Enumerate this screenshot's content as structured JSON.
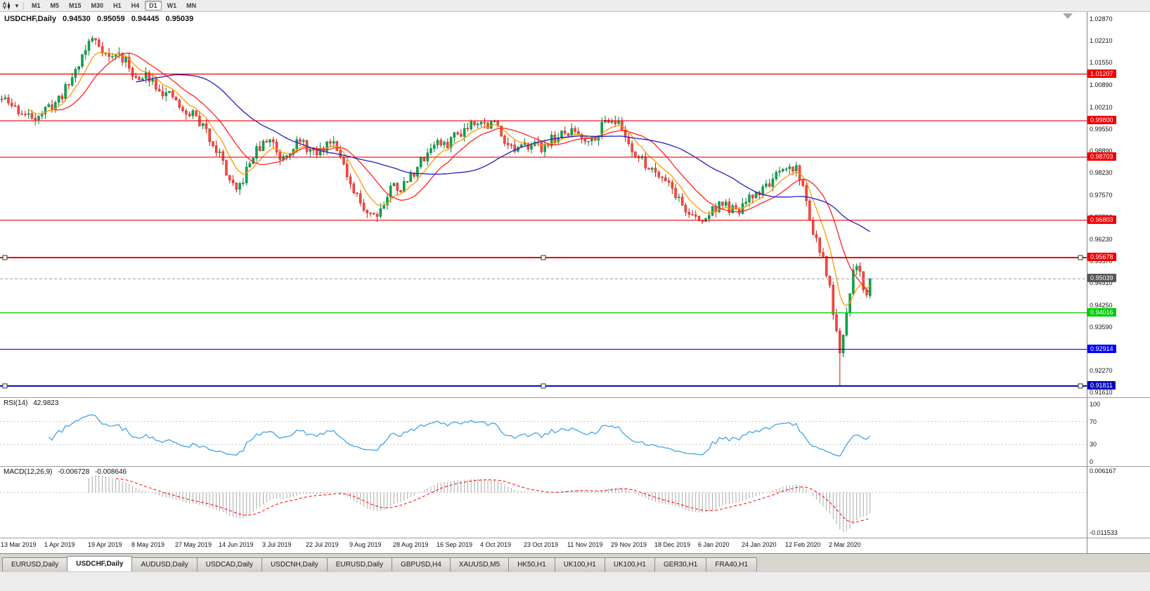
{
  "toolbar": {
    "timeframes": [
      "M1",
      "M5",
      "M15",
      "M30",
      "H1",
      "H4",
      "D1",
      "W1",
      "MN"
    ],
    "active_timeframe": "D1"
  },
  "chart": {
    "symbol_timeframe": "USDCHF,Daily",
    "open": "0.94530",
    "high": "0.95059",
    "low": "0.94445",
    "close": "0.95039"
  },
  "current_price": {
    "value": 0.95039,
    "label": "0.95039"
  },
  "price_axis": {
    "labels": [
      "1.02870",
      "1.02210",
      "1.01550",
      "1.00890",
      "1.00210",
      "0.99550",
      "0.98890",
      "0.98230",
      "0.97570",
      "0.96910",
      "0.96230",
      "0.95570",
      "0.94910",
      "0.94250",
      "0.93590",
      "0.92930",
      "0.92270",
      "0.91610"
    ]
  },
  "x_axis": {
    "labels": [
      "13 Mar 2019",
      "1 Apr 2019",
      "19 Apr 2019",
      "8 May 2019",
      "27 May 2019",
      "14 Jun 2019",
      "3 Jul 2019",
      "22 Jul 2019",
      "9 Aug 2019",
      "28 Aug 2019",
      "16 Sep 2019",
      "4 Oct 2019",
      "23 Oct 2019",
      "11 Nov 2019",
      "29 Nov 2019",
      "18 Dec 2019",
      "6 Jan 2020",
      "24 Jan 2020",
      "12 Feb 2020",
      "2 Mar 2020"
    ]
  },
  "levels": [
    {
      "price": "1.01207",
      "color": "#ee0000",
      "selected": false
    },
    {
      "price": "0.99800",
      "color": "#ee0000",
      "selected": false
    },
    {
      "price": "0.98703",
      "color": "#ee0000",
      "selected": false
    },
    {
      "price": "0.96803",
      "color": "#ee0000",
      "selected": false
    },
    {
      "price": "0.95678",
      "color": "#ee0000",
      "selected": true
    },
    {
      "price": "0.94016",
      "color": "#00cc00",
      "selected": false
    },
    {
      "price": "0.92914",
      "color": "#0000ff",
      "selected": false
    },
    {
      "price": "0.91811",
      "color": "#0000bb",
      "selected": true
    }
  ],
  "rsi": {
    "label": "RSI(14)",
    "value": "42.9823",
    "axis_labels": [
      "100",
      "70",
      "30",
      "0"
    ],
    "level_lines": [
      70,
      30
    ]
  },
  "macd": {
    "label": "MACD(12,26,9)",
    "value": "-0.006728",
    "signal": "-0.008646",
    "axis_labels": [
      "0.006167",
      "-0.011533"
    ]
  },
  "tabs": {
    "items": [
      "EURUSD,Daily",
      "USDCHF,Daily",
      "AUDUSD,Daily",
      "USDCAD,Daily",
      "USDCNH,Daily",
      "EURUSD,Daily",
      "GBPUSD,H4",
      "XAUUSD,M5",
      "HK50,H1",
      "UK100,H1",
      "UK100,H1",
      "GER30,H1",
      "FRA40,H1"
    ],
    "active_index": 1
  },
  "colors": {
    "bull": "#0aa64c",
    "bull_edge": "#067a36",
    "bear": "#fa4b42",
    "bear_edge": "#c3170d",
    "rsi_line": "#41a4e6",
    "macd_hist": "#a8a8a8",
    "macd_signal": "#ff0000",
    "current_badge": "#555555",
    "grid_dotted": "#c4c4c4"
  },
  "chart_data": {
    "type": "candlestick",
    "symbol": "USDCHF",
    "timeframe": "Daily",
    "n_candles": 260,
    "seed": 11,
    "volatility": 0.0032,
    "price_min": 0.9147,
    "price_max": 1.031,
    "macd_min": -0.0122,
    "macd_max": 0.0068,
    "spike": {
      "fraction": 0.965,
      "low": 0.91811
    },
    "last_candle": {
      "o": 0.9453,
      "h": 0.95059,
      "l": 0.94445,
      "c": 0.95039
    },
    "moving_averages": [
      {
        "period": 8,
        "type": "ema",
        "color": "#ff9900"
      },
      {
        "period": 16,
        "type": "sma",
        "color": "#ff2222"
      },
      {
        "period": 40,
        "type": "sma",
        "color": "#1f1fbe"
      }
    ],
    "price_path": [
      [
        0.0,
        1.0045
      ],
      [
        0.015,
        1.002
      ],
      [
        0.03,
        0.999
      ],
      [
        0.042,
        1.0
      ],
      [
        0.05,
        1.001
      ],
      [
        0.062,
        1.0035
      ],
      [
        0.075,
        1.008
      ],
      [
        0.088,
        1.015
      ],
      [
        0.1,
        1.0215
      ],
      [
        0.106,
        1.023
      ],
      [
        0.115,
        1.02
      ],
      [
        0.125,
        1.0165
      ],
      [
        0.133,
        1.0185
      ],
      [
        0.142,
        1.016
      ],
      [
        0.15,
        1.013
      ],
      [
        0.158,
        1.0095
      ],
      [
        0.168,
        1.012
      ],
      [
        0.178,
        1.009
      ],
      [
        0.188,
        1.006
      ],
      [
        0.2,
        1.0045
      ],
      [
        0.21,
        0.9995
      ],
      [
        0.22,
        1.0005
      ],
      [
        0.232,
        0.996
      ],
      [
        0.243,
        0.9915
      ],
      [
        0.252,
        0.9875
      ],
      [
        0.262,
        0.98
      ],
      [
        0.27,
        0.976
      ],
      [
        0.28,
        0.9815
      ],
      [
        0.29,
        0.988
      ],
      [
        0.3,
        0.9905
      ],
      [
        0.31,
        0.993
      ],
      [
        0.32,
        0.987
      ],
      [
        0.33,
        0.989
      ],
      [
        0.34,
        0.9915
      ],
      [
        0.35,
        0.9905
      ],
      [
        0.36,
        0.9875
      ],
      [
        0.37,
        0.9895
      ],
      [
        0.38,
        0.993
      ],
      [
        0.39,
        0.9885
      ],
      [
        0.4,
        0.978
      ],
      [
        0.41,
        0.9745
      ],
      [
        0.42,
        0.971
      ],
      [
        0.43,
        0.9698
      ],
      [
        0.44,
        0.973
      ],
      [
        0.45,
        0.979
      ],
      [
        0.46,
        0.9775
      ],
      [
        0.47,
        0.981
      ],
      [
        0.48,
        0.9845
      ],
      [
        0.49,
        0.9885
      ],
      [
        0.5,
        0.992
      ],
      [
        0.51,
        0.99
      ],
      [
        0.52,
        0.9935
      ],
      [
        0.53,
        0.995
      ],
      [
        0.54,
        0.9975
      ],
      [
        0.548,
        0.9985
      ],
      [
        0.558,
        0.9965
      ],
      [
        0.568,
        0.9975
      ],
      [
        0.578,
        0.993
      ],
      [
        0.59,
        0.989
      ],
      [
        0.6,
        0.9895
      ],
      [
        0.61,
        0.992
      ],
      [
        0.62,
        0.9895
      ],
      [
        0.63,
        0.992
      ],
      [
        0.64,
        0.993
      ],
      [
        0.65,
        0.994
      ],
      [
        0.66,
        0.995
      ],
      [
        0.67,
        0.993
      ],
      [
        0.68,
        0.9925
      ],
      [
        0.69,
        0.996
      ],
      [
        0.698,
        0.999
      ],
      [
        0.706,
        0.9985
      ],
      [
        0.716,
        0.9945
      ],
      [
        0.726,
        0.9895
      ],
      [
        0.736,
        0.986
      ],
      [
        0.746,
        0.984
      ],
      [
        0.756,
        0.9825
      ],
      [
        0.766,
        0.9805
      ],
      [
        0.776,
        0.976
      ],
      [
        0.786,
        0.9715
      ],
      [
        0.796,
        0.969
      ],
      [
        0.806,
        0.9672
      ],
      [
        0.816,
        0.9705
      ],
      [
        0.826,
        0.973
      ],
      [
        0.836,
        0.972
      ],
      [
        0.846,
        0.97
      ],
      [
        0.856,
        0.973
      ],
      [
        0.866,
        0.9755
      ],
      [
        0.876,
        0.9775
      ],
      [
        0.886,
        0.98
      ],
      [
        0.896,
        0.9815
      ],
      [
        0.906,
        0.9835
      ],
      [
        0.915,
        0.984
      ],
      [
        0.922,
        0.979
      ],
      [
        0.93,
        0.969
      ],
      [
        0.938,
        0.962
      ],
      [
        0.946,
        0.9555
      ],
      [
        0.953,
        0.949
      ],
      [
        0.958,
        0.94
      ],
      [
        0.963,
        0.93
      ],
      [
        0.966,
        0.926
      ],
      [
        0.97,
        0.934
      ],
      [
        0.974,
        0.942
      ],
      [
        0.978,
        0.949
      ],
      [
        0.982,
        0.9545
      ],
      [
        0.986,
        0.956
      ],
      [
        0.99,
        0.95
      ],
      [
        0.994,
        0.9445
      ],
      [
        1.0,
        0.9504
      ]
    ]
  }
}
